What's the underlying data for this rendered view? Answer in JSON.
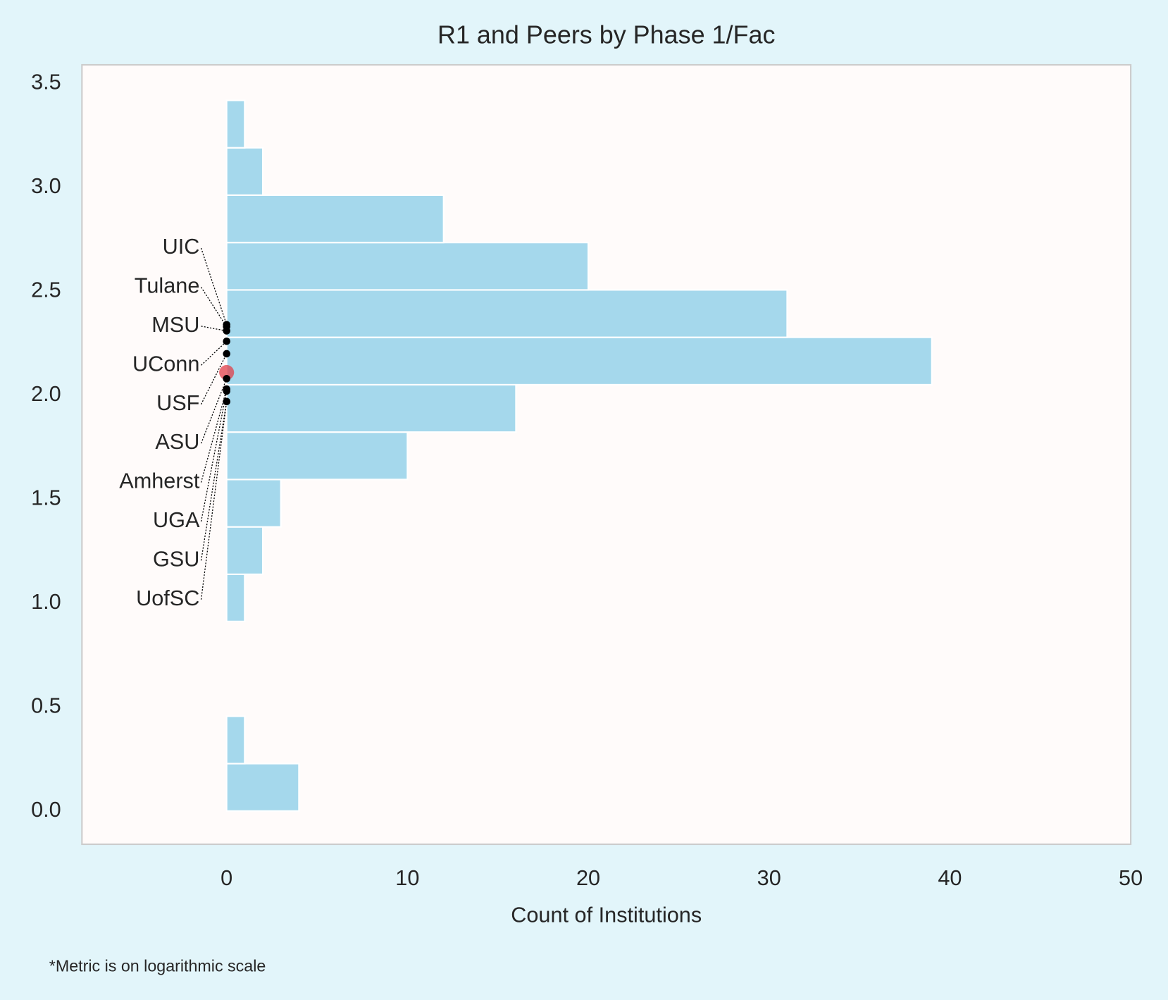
{
  "chart_data": {
    "type": "histogram",
    "orientation": "horizontal",
    "title": "R1 and Peers by Phase 1/Fac",
    "xlabel": "Count of Institutions",
    "footnote": "*Metric is on logarithmic scale",
    "bins": [
      0,
      0.228,
      0.456,
      0.684,
      0.912,
      1.139,
      1.367,
      1.595,
      1.823,
      2.051,
      2.279,
      2.507,
      2.735,
      2.963,
      3.191,
      3.419
    ],
    "counts": [
      4,
      1,
      0,
      0,
      1,
      2,
      3,
      10,
      16,
      39,
      31,
      20,
      12,
      2,
      1
    ],
    "color": "#a5d8ec",
    "xlim": [
      -8,
      50
    ],
    "xticks": [
      0,
      10,
      20,
      30,
      40,
      50
    ],
    "ylim": [
      -0.16,
      3.59
    ],
    "yticks": [
      {
        "value": 0,
        "label": "0.0"
      },
      0.5,
      {
        "value": 1,
        "label": "1.0"
      },
      1.5,
      {
        "value": 2,
        "label": "2.0"
      },
      2.5,
      {
        "value": 3,
        "label": "3.0"
      },
      3.5
    ],
    "grid": false,
    "highlight": {
      "x": 0,
      "y": 2.11,
      "color": "#e0404a"
    },
    "points": [
      {
        "name": "UIC",
        "x": 0,
        "y": 2.34
      },
      {
        "name": "Tulane",
        "x": 0,
        "y": 2.33
      },
      {
        "name": "MSU",
        "x": 0,
        "y": 2.31
      },
      {
        "name": "UConn",
        "x": 0,
        "y": 2.26
      },
      {
        "name": "USF",
        "x": 0,
        "y": 2.2
      },
      {
        "name": "ASU",
        "x": 0,
        "y": 2.08
      },
      {
        "name": "Amherst",
        "x": 0,
        "y": 2.03
      },
      {
        "name": "UGA",
        "x": 0,
        "y": 2.02
      },
      {
        "name": "GSU",
        "x": 0,
        "y": 1.97
      },
      {
        "name": "UofSC",
        "x": 0,
        "y": 1.97
      }
    ]
  }
}
